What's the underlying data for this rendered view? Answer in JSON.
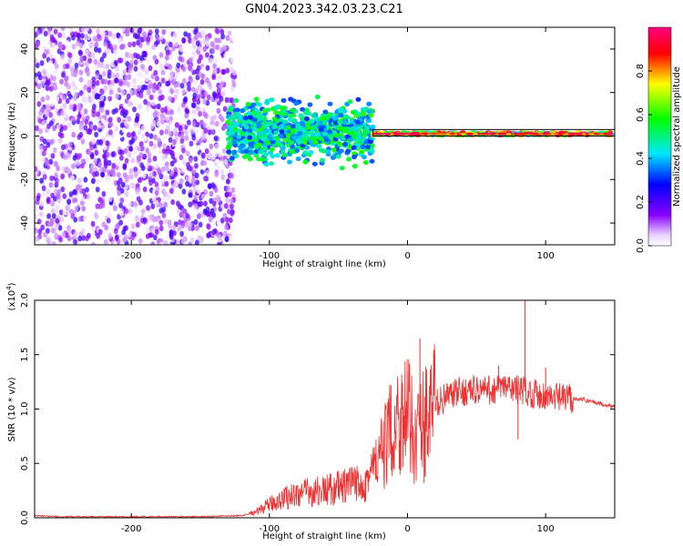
{
  "figure": {
    "title": "GN04.2023.342.03.23.C21"
  },
  "chart_data": [
    {
      "type": "heatmap",
      "xlabel": "Height of straight line (km)",
      "ylabel": "Frequency (Hz)",
      "xlim": [
        -270,
        150
      ],
      "ylim": [
        -50,
        50
      ],
      "xticks": [
        -200,
        -100,
        0,
        100
      ],
      "yticks": [
        -40,
        -20,
        0,
        20,
        40
      ],
      "xtick_labels": [
        "-200",
        "-100",
        "0",
        "100"
      ],
      "ytick_labels": [
        "-40",
        "-20",
        "0",
        "20",
        "40"
      ],
      "colorbar": {
        "label": "Normalized spectral amplitude",
        "range": [
          0,
          1
        ],
        "ticks": [
          0.0,
          0.2,
          0.4,
          0.6,
          0.8
        ],
        "tick_labels": [
          "0.0",
          "0.2",
          "0.4",
          "0.6",
          "0.8"
        ],
        "colormap": [
          "#ffffff",
          "#8a00ff",
          "#0000ff",
          "#00e5ff",
          "#00ff00",
          "#ffff00",
          "#ff0000",
          "#ff0080"
        ]
      },
      "regions": [
        {
          "name": "diffuse noise",
          "x": [
            -270,
            -125
          ],
          "freq": [
            -50,
            50
          ],
          "amplitude": [
            0.0,
            0.25
          ]
        },
        {
          "name": "broadband signal",
          "x": [
            -130,
            -25
          ],
          "freq": [
            -8,
            12
          ],
          "amplitude": [
            0.3,
            0.6
          ]
        },
        {
          "name": "narrowband line",
          "x": [
            -25,
            150
          ],
          "freq": [
            0,
            2
          ],
          "amplitude": [
            0.4,
            1.0
          ]
        }
      ],
      "line_band": {
        "x": [
          -25,
          150
        ],
        "freq": [
          0,
          3
        ],
        "color": "#000000"
      }
    },
    {
      "type": "line",
      "xlabel": "Height of straight line (km)",
      "ylabel": "SNR (10 * v/v)",
      "y_multiplier_label": "(x10",
      "y_multiplier_exp": "4",
      "y_multiplier_close": ")",
      "xlim": [
        -270,
        150
      ],
      "ylim": [
        0,
        2.0
      ],
      "xticks": [
        -200,
        -100,
        0,
        100
      ],
      "yticks": [
        0.0,
        0.5,
        1.0,
        1.5,
        2.0
      ],
      "xtick_labels": [
        "-200",
        "-100",
        "0",
        "100"
      ],
      "ytick_labels": [
        "0.0",
        "0.5",
        "1.0",
        "1.5",
        "2.0"
      ],
      "line_color": "#ee3030",
      "x": [
        -270,
        -250,
        -200,
        -150,
        -120,
        -110,
        -100,
        -90,
        -80,
        -60,
        -40,
        -30,
        -25,
        -20,
        -15,
        -10,
        -5,
        0,
        5,
        10,
        15,
        20,
        30,
        40,
        50,
        60,
        70,
        80,
        90,
        100,
        110,
        120,
        130,
        140,
        150
      ],
      "y": [
        0.02,
        0.01,
        0.01,
        0.01,
        0.02,
        0.05,
        0.12,
        0.18,
        0.22,
        0.25,
        0.3,
        0.35,
        0.45,
        0.55,
        0.7,
        0.85,
        0.95,
        0.95,
        0.75,
        0.85,
        0.95,
        1.05,
        1.12,
        1.16,
        1.18,
        1.17,
        1.2,
        1.18,
        1.15,
        1.12,
        1.1,
        1.1,
        1.08,
        1.05,
        1.02
      ],
      "spikes": [
        {
          "x": -12,
          "y": 1.22
        },
        {
          "x": 9,
          "y": 1.65
        },
        {
          "x": 12,
          "y": 0.32
        },
        {
          "x": 66,
          "y": 1.4
        },
        {
          "x": 85,
          "y": 2.0
        },
        {
          "x": 80,
          "y": 0.72
        },
        {
          "x": 100,
          "y": 1.38
        },
        {
          "x": 118,
          "y": 1.2
        }
      ]
    }
  ]
}
